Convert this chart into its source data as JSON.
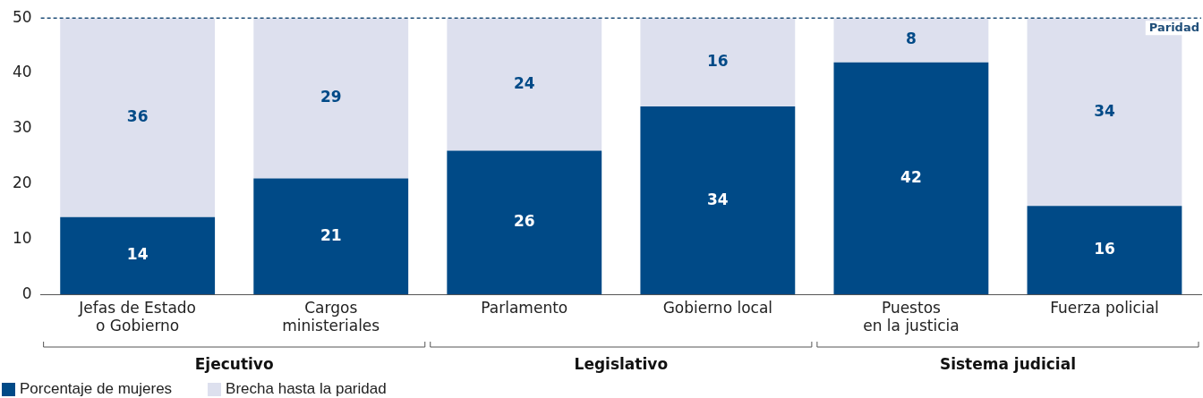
{
  "chart_data": {
    "type": "bar",
    "stacked": true,
    "categories": [
      "Jefas de Estado\no Gobierno",
      "Cargos\nministeriales",
      "Parlamento",
      "Gobierno local",
      "Puestos\nen la justicia",
      "Fuerza policial"
    ],
    "series": [
      {
        "name": "Porcentaje de mujeres",
        "color": "#004a87",
        "values": [
          14,
          21,
          26,
          34,
          42,
          16
        ]
      },
      {
        "name": "Brecha hasta la paridad",
        "color": "#dde0ee",
        "values": [
          36,
          29,
          24,
          16,
          8,
          34
        ]
      }
    ],
    "ylim": [
      0,
      50
    ],
    "yticks": [
      0,
      10,
      20,
      30,
      40,
      50
    ],
    "data_labels": true,
    "ref_lines": [
      {
        "axis": "y",
        "value": 50,
        "label": "Paridad",
        "color": "#1f4e79",
        "line_style": "dashed"
      }
    ],
    "annotations": [
      "Ejecutivo",
      "Legislativo",
      "Sistema judicial"
    ],
    "legend": "bottom left"
  }
}
